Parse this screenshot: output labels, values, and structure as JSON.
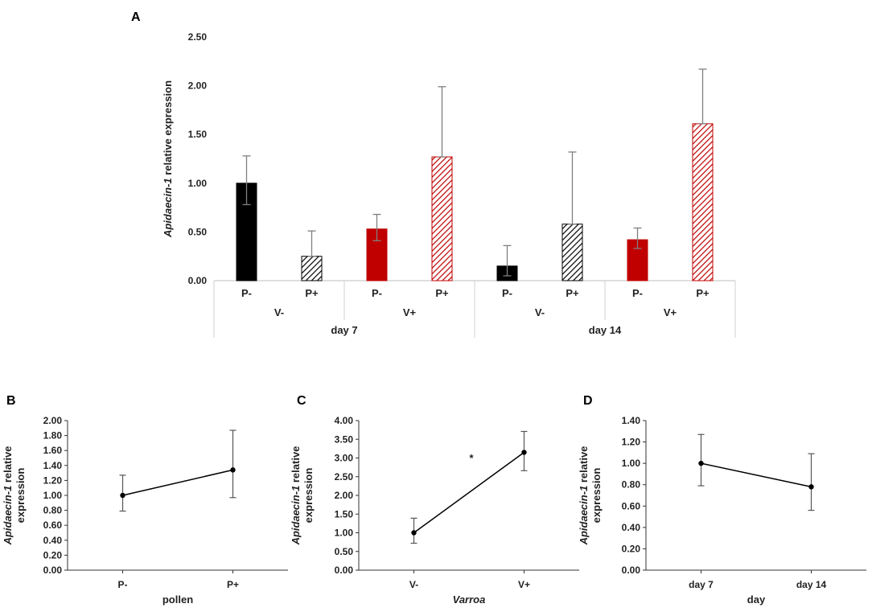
{
  "chart_data": [
    {
      "panel": "A",
      "type": "bar",
      "ylabel_italic": "Apidaecin-1",
      "ylabel_rest": " relative expression",
      "ylim": [
        0,
        2.5
      ],
      "yticks": [
        "0.00",
        "0.50",
        "1.00",
        "1.50",
        "2.00",
        "2.50"
      ],
      "bars": [
        {
          "pollen": "P-",
          "varroa": "V-",
          "day": "day 7",
          "value": 1.0,
          "err_up": 1.28,
          "err_low": 0.78,
          "color": "#000000",
          "hatch": false
        },
        {
          "pollen": "P+",
          "varroa": "V-",
          "day": "day 7",
          "value": 0.25,
          "err_up": 0.51,
          "err_low": 0.25,
          "color": "#000000",
          "hatch": true
        },
        {
          "pollen": "P-",
          "varroa": "V+",
          "day": "day 7",
          "value": 0.53,
          "err_up": 0.68,
          "err_low": 0.41,
          "color": "#c00000",
          "hatch": false
        },
        {
          "pollen": "P+",
          "varroa": "V+",
          "day": "day 7",
          "value": 1.27,
          "err_up": 1.99,
          "err_low": 1.27,
          "color": "#c00000",
          "hatch": true
        },
        {
          "pollen": "P-",
          "varroa": "V-",
          "day": "day 14",
          "value": 0.15,
          "err_up": 0.36,
          "err_low": 0.05,
          "color": "#000000",
          "hatch": false
        },
        {
          "pollen": "P+",
          "varroa": "V-",
          "day": "day 14",
          "value": 0.58,
          "err_up": 1.32,
          "err_low": 0.58,
          "color": "#000000",
          "hatch": true
        },
        {
          "pollen": "P-",
          "varroa": "V+",
          "day": "day 14",
          "value": 0.42,
          "err_up": 0.54,
          "err_low": 0.33,
          "color": "#c00000",
          "hatch": false
        },
        {
          "pollen": "P+",
          "varroa": "V+",
          "day": "day 14",
          "value": 1.61,
          "err_up": 2.17,
          "err_low": 1.61,
          "color": "#c00000",
          "hatch": true
        }
      ],
      "varroa_labels": [
        "V-",
        "V+",
        "V-",
        "V+"
      ],
      "day_labels": [
        "day 7",
        "day 14"
      ]
    },
    {
      "panel": "B",
      "type": "line",
      "xlabel": "pollen",
      "ylabel_italic": "Apidaecin-1",
      "ylabel_rest": " relative",
      "ylabel_line2": "expression",
      "categories": [
        "P-",
        "P+"
      ],
      "values": [
        1.0,
        1.34
      ],
      "err_up": [
        1.27,
        1.87
      ],
      "err_low": [
        0.79,
        0.97
      ],
      "ylim": [
        0,
        2.0
      ],
      "yticks": [
        "0.00",
        "0.20",
        "0.40",
        "0.60",
        "0.80",
        "1.00",
        "1.20",
        "1.40",
        "1.60",
        "1.80",
        "2.00"
      ]
    },
    {
      "panel": "C",
      "type": "line",
      "xlabel": "Varroa",
      "ylabel_italic": "Apidaecin-1",
      "ylabel_rest": " relative",
      "ylabel_line2": "expression",
      "categories": [
        "V-",
        "V+"
      ],
      "values": [
        1.0,
        3.15
      ],
      "err_up": [
        1.39,
        3.71
      ],
      "err_low": [
        0.72,
        2.66
      ],
      "annotation": "*",
      "ylim": [
        0,
        4.0
      ],
      "yticks": [
        "0.00",
        "0.50",
        "1.00",
        "1.50",
        "2.00",
        "2.50",
        "3.00",
        "3.50",
        "4.00"
      ]
    },
    {
      "panel": "D",
      "type": "line",
      "xlabel": "day",
      "ylabel_italic": "Apidaecin-1",
      "ylabel_rest": " relative",
      "ylabel_line2": "expression",
      "categories": [
        "day 7",
        "day 14"
      ],
      "values": [
        1.0,
        0.78
      ],
      "err_up": [
        1.27,
        1.09
      ],
      "err_low": [
        0.79,
        0.56
      ],
      "ylim": [
        0,
        1.4
      ],
      "yticks": [
        "0.00",
        "0.20",
        "0.40",
        "0.60",
        "0.80",
        "1.00",
        "1.20",
        "1.40"
      ]
    }
  ]
}
